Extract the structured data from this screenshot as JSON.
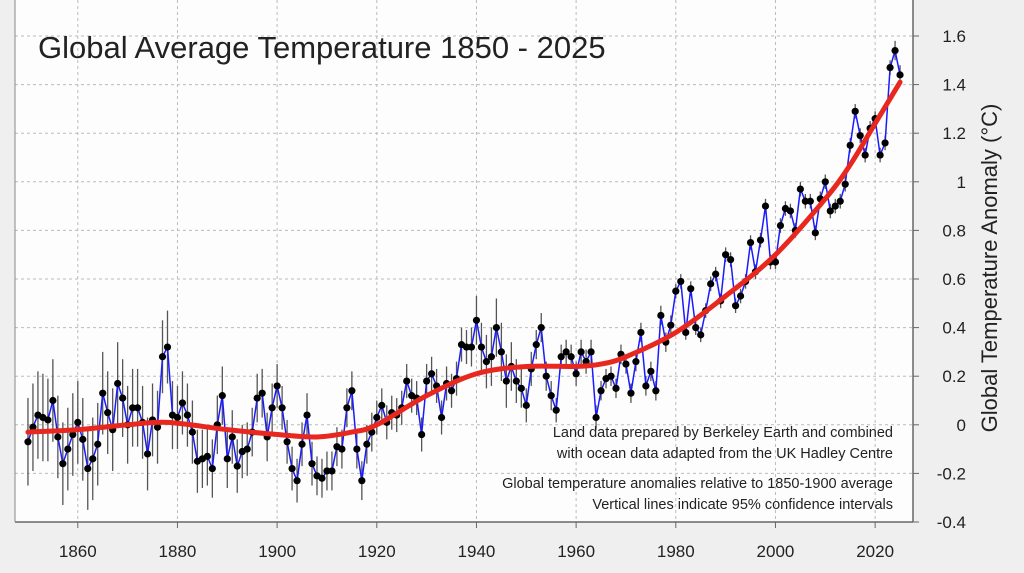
{
  "chart_data": {
    "type": "line",
    "title": "Global Average Temperature 1850 - 2025",
    "xlabel": "",
    "ylabel": "Global  Temperature  Anomaly  (°C)",
    "xlim": [
      1847.4,
      2027.6
    ],
    "ylim": [
      -0.4,
      1.6
    ],
    "grid": true,
    "y_axis_side": "right",
    "x_ticks": [
      1860,
      1880,
      1900,
      1920,
      1940,
      1960,
      1980,
      2000,
      2020
    ],
    "y_ticks": [
      -0.4,
      -0.2,
      0,
      0.2,
      0.4,
      0.6,
      0.8,
      1,
      1.2,
      1.4,
      1.6
    ],
    "y_tick_labels": [
      "-0.4",
      "-0.2",
      "0",
      "0.2",
      "0.4",
      "0.6",
      "0.8",
      "1",
      "1.2",
      "1.4",
      "1.6"
    ],
    "x_tick_labels": [
      "1860",
      "1880",
      "1900",
      "1920",
      "1940",
      "1960",
      "1980",
      "2000",
      "2020"
    ],
    "annual": {
      "start_year": 1850,
      "values": [
        -0.07,
        -0.01,
        0.04,
        0.03,
        0.02,
        0.1,
        -0.05,
        -0.16,
        -0.1,
        -0.04,
        0.01,
        -0.06,
        -0.18,
        -0.14,
        -0.08,
        0.13,
        0.05,
        -0.02,
        0.17,
        0.11,
        0.0,
        0.07,
        0.07,
        0.01,
        -0.12,
        0.02,
        -0.01,
        0.28,
        0.32,
        0.04,
        0.03,
        0.09,
        0.04,
        -0.03,
        -0.15,
        -0.14,
        -0.13,
        -0.18,
        0.0,
        0.12,
        -0.14,
        -0.05,
        -0.17,
        -0.11,
        -0.1,
        -0.03,
        0.11,
        0.13,
        -0.05,
        0.07,
        0.16,
        0.07,
        -0.07,
        -0.18,
        -0.23,
        -0.08,
        0.04,
        -0.16,
        -0.21,
        -0.22,
        -0.19,
        -0.19,
        -0.09,
        -0.1,
        0.07,
        0.14,
        -0.1,
        -0.23,
        -0.08,
        -0.03,
        0.03,
        0.08,
        0.01,
        0.05,
        0.04,
        0.07,
        0.18,
        0.12,
        0.11,
        -0.04,
        0.18,
        0.21,
        0.16,
        0.03,
        0.17,
        0.14,
        0.19,
        0.33,
        0.32,
        0.32,
        0.43,
        0.32,
        0.26,
        0.28,
        0.4,
        0.3,
        0.18,
        0.24,
        0.18,
        0.15,
        0.08,
        0.23,
        0.33,
        0.4,
        0.2,
        0.12,
        0.06,
        0.28,
        0.3,
        0.28,
        0.21,
        0.3,
        0.26,
        0.3,
        0.03,
        0.14,
        0.19,
        0.2,
        0.15,
        0.29,
        0.25,
        0.13,
        0.26,
        0.38,
        0.16,
        0.22,
        0.14,
        0.45,
        0.34,
        0.41,
        0.55,
        0.59,
        0.38,
        0.56,
        0.4,
        0.37,
        0.47,
        0.58,
        0.62,
        0.51,
        0.7,
        0.68,
        0.49,
        0.53,
        0.59,
        0.75,
        0.63,
        0.76,
        0.9,
        0.67,
        0.67,
        0.82,
        0.89,
        0.88,
        0.8,
        0.97,
        0.92,
        0.92,
        0.79,
        0.93,
        1.0,
        0.88,
        0.9,
        0.92,
        0.99,
        1.15,
        1.29,
        1.19,
        1.11,
        1.22,
        1.26,
        1.11,
        1.16,
        1.47,
        1.54,
        1.44
      ],
      "ci95_half_width": [
        0.18,
        0.18,
        0.18,
        0.18,
        0.17,
        0.17,
        0.17,
        0.17,
        0.17,
        0.17,
        0.17,
        0.17,
        0.17,
        0.17,
        0.17,
        0.17,
        0.17,
        0.17,
        0.17,
        0.16,
        0.16,
        0.16,
        0.16,
        0.15,
        0.15,
        0.15,
        0.15,
        0.15,
        0.15,
        0.14,
        0.13,
        0.13,
        0.13,
        0.13,
        0.13,
        0.12,
        0.12,
        0.12,
        0.12,
        0.12,
        0.12,
        0.11,
        0.11,
        0.11,
        0.11,
        0.1,
        0.1,
        0.1,
        0.1,
        0.1,
        0.09,
        0.09,
        0.09,
        0.09,
        0.09,
        0.09,
        0.09,
        0.09,
        0.08,
        0.08,
        0.08,
        0.08,
        0.08,
        0.08,
        0.08,
        0.08,
        0.08,
        0.08,
        0.08,
        0.08,
        0.07,
        0.07,
        0.07,
        0.07,
        0.07,
        0.07,
        0.07,
        0.07,
        0.07,
        0.07,
        0.07,
        0.07,
        0.07,
        0.07,
        0.07,
        0.07,
        0.07,
        0.07,
        0.07,
        0.08,
        0.1,
        0.1,
        0.11,
        0.12,
        0.12,
        0.12,
        0.11,
        0.1,
        0.09,
        0.08,
        0.07,
        0.07,
        0.06,
        0.06,
        0.06,
        0.06,
        0.05,
        0.05,
        0.05,
        0.05,
        0.05,
        0.05,
        0.05,
        0.05,
        0.05,
        0.04,
        0.04,
        0.04,
        0.04,
        0.04,
        0.04,
        0.04,
        0.04,
        0.04,
        0.04,
        0.04,
        0.04,
        0.04,
        0.04,
        0.04,
        0.03,
        0.03,
        0.03,
        0.03,
        0.03,
        0.03,
        0.03,
        0.03,
        0.03,
        0.03,
        0.03,
        0.03,
        0.03,
        0.03,
        0.03,
        0.03,
        0.03,
        0.03,
        0.03,
        0.03,
        0.03,
        0.03,
        0.03,
        0.03,
        0.03,
        0.03,
        0.03,
        0.03,
        0.03,
        0.03,
        0.03,
        0.03,
        0.03,
        0.03,
        0.03,
        0.03,
        0.03,
        0.03,
        0.03,
        0.03,
        0.03,
        0.03,
        0.03,
        0.03,
        0.04,
        0.04
      ]
    },
    "smoothed": {
      "x": [
        1850,
        1860,
        1870,
        1878,
        1890,
        1900,
        1908,
        1915,
        1920,
        1930,
        1940,
        1950,
        1960,
        1965,
        1970,
        1980,
        1990,
        2000,
        2010,
        2015,
        2020,
        2025
      ],
      "y": [
        -0.03,
        -0.02,
        0.0,
        0.01,
        -0.02,
        -0.04,
        -0.05,
        -0.03,
        0.0,
        0.12,
        0.21,
        0.24,
        0.24,
        0.25,
        0.28,
        0.38,
        0.53,
        0.7,
        0.93,
        1.07,
        1.24,
        1.41
      ]
    },
    "annotations": [
      "Land data prepared by Berkeley Earth and combined",
      "with ocean data adapted from the UK Hadley Centre",
      "Global temperature anomalies relative to 1850-1900 average",
      "Vertical lines indicate 95% confidence intervals"
    ],
    "colors": {
      "annual_line": "#1a1aff",
      "points": "#000000",
      "smoothed": "#e8281e",
      "error_bars": "#555555",
      "grid": "#bbbbbb"
    }
  }
}
